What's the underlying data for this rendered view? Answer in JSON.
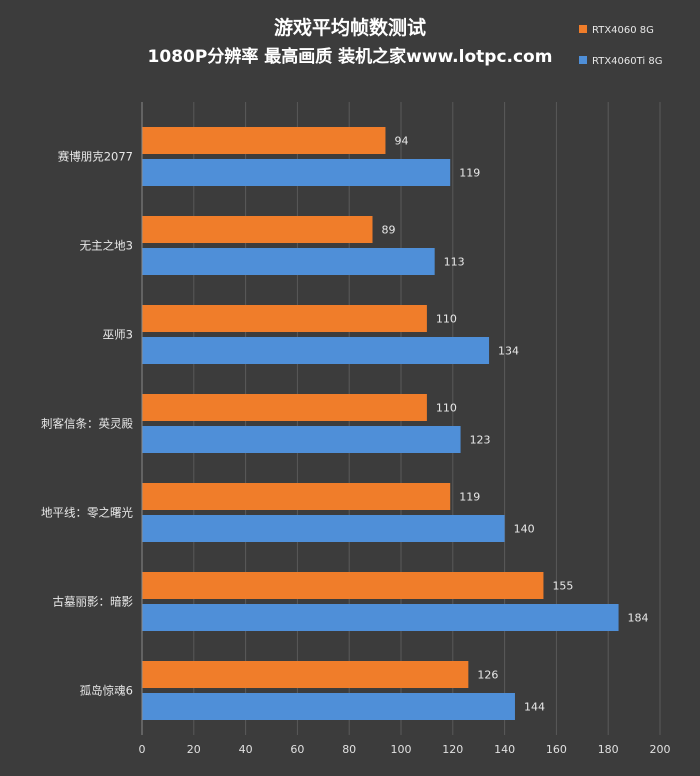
{
  "chart_data": {
    "type": "bar",
    "orientation": "horizontal",
    "title": "游戏平均帧数测试",
    "subtitle": "1080P分辨率 最高画质 装机之家www.lotpc.com",
    "categories": [
      "赛博朋克2077",
      "无主之地3",
      "巫师3",
      "刺客信条：英灵殿",
      "地平线：零之曙光",
      "古墓丽影：暗影",
      "孤岛惊魂6"
    ],
    "series": [
      {
        "name": "RTX4060 8G",
        "color": "#f07d2a",
        "values": [
          94,
          89,
          110,
          110,
          119,
          155,
          126
        ]
      },
      {
        "name": "RTX4060Ti 8G",
        "color": "#4f8fd8",
        "values": [
          119,
          113,
          134,
          123,
          140,
          184,
          144
        ]
      }
    ],
    "xlim": [
      0,
      200
    ],
    "xticks": [
      0,
      20,
      40,
      60,
      80,
      100,
      120,
      140,
      160,
      180,
      200
    ],
    "grid": true,
    "legend_position": "top-right"
  }
}
